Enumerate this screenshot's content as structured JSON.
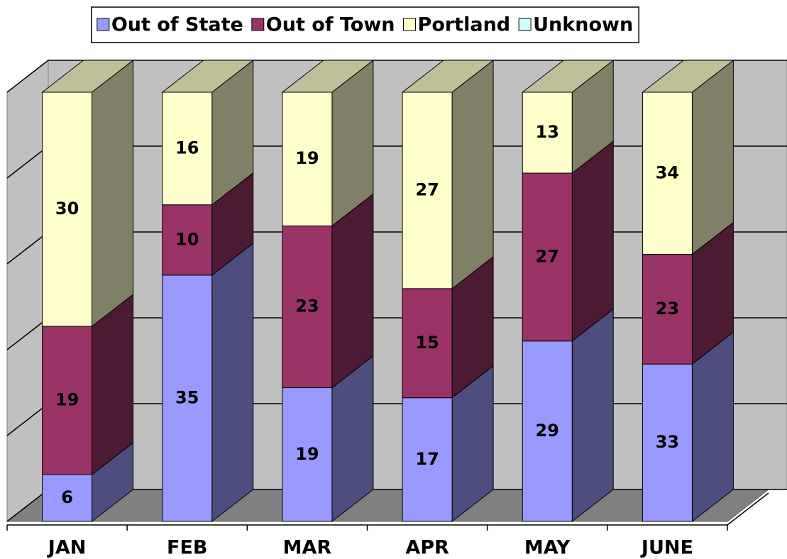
{
  "chart_data": {
    "type": "bar",
    "stacking": "percent",
    "three_d": true,
    "categories": [
      "JAN",
      "FEB",
      "MAR",
      "APR",
      "MAY",
      "JUNE"
    ],
    "series": [
      {
        "name": "Out of State",
        "color": "#9999ff",
        "values": [
          6,
          35,
          19,
          17,
          29,
          33
        ]
      },
      {
        "name": "Out of Town",
        "color": "#993366",
        "values": [
          19,
          10,
          23,
          15,
          27,
          23
        ]
      },
      {
        "name": "Portland",
        "color": "#ffffcc",
        "values": [
          30,
          16,
          19,
          27,
          13,
          34
        ]
      },
      {
        "name": "Unknown",
        "color": "#ccffff",
        "values": [
          null,
          null,
          null,
          null,
          null,
          null
        ]
      }
    ],
    "ylim": [
      0,
      100
    ],
    "yticks": [
      0,
      20,
      40,
      60,
      80,
      100
    ],
    "grid": true,
    "legend": "top"
  }
}
